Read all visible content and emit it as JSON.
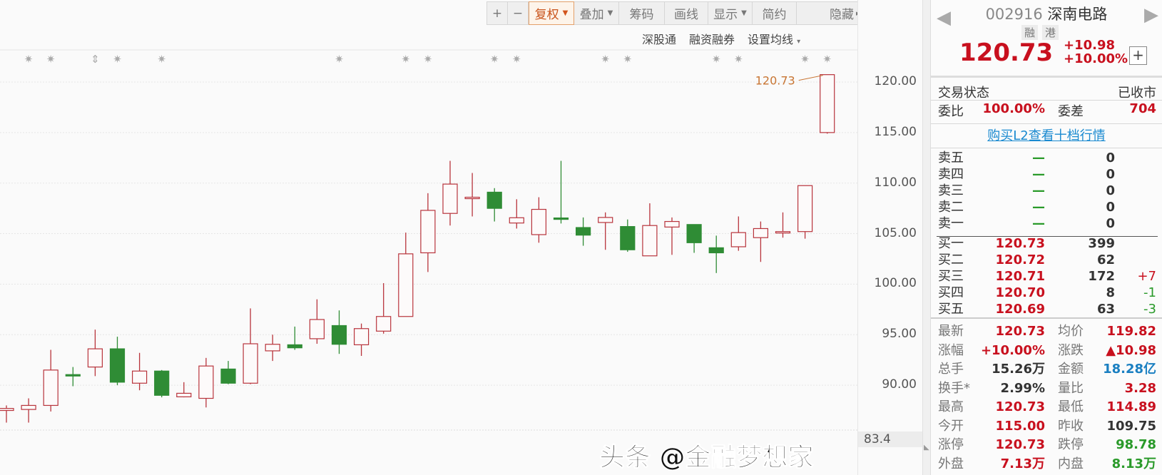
{
  "toolbar": {
    "zoom_in": "+",
    "zoom_out": "−",
    "buttons": [
      {
        "label": "复权",
        "dropdown": true,
        "active": true
      },
      {
        "label": "叠加",
        "dropdown": true,
        "active": false
      },
      {
        "label": "筹码",
        "dropdown": false,
        "active": false
      },
      {
        "label": "画线",
        "dropdown": false,
        "active": false
      },
      {
        "label": "显示",
        "dropdown": true,
        "active": false
      },
      {
        "label": "简约",
        "dropdown": false,
        "active": false
      },
      {
        "label": "隐藏",
        "dropdown": false,
        "active": false,
        "suffix": "▸▸"
      }
    ],
    "fullscreen_icon": "expand-icon"
  },
  "subbar": {
    "items": [
      "深股通",
      "融资融券",
      "设置均线"
    ],
    "caret": "▾"
  },
  "chart_data": {
    "type": "candlestick",
    "y_ticks": [
      "120.00",
      "115.00",
      "110.00",
      "105.00",
      "100.00",
      "95.00",
      "90.00"
    ],
    "y_tick_values": [
      120,
      115,
      110,
      105,
      100,
      95,
      90
    ],
    "y_low_label": "83.4",
    "ylim": [
      83.4,
      121.3
    ],
    "grid": true,
    "last_price_label": "120.73",
    "up_color": "#b8343c",
    "down_color": "#2f8c35",
    "marker_indices": [
      1,
      2,
      4,
      5,
      7,
      15,
      18,
      19,
      22,
      23,
      27,
      28,
      32,
      33,
      36,
      37
    ],
    "marker_kinds": [
      "star",
      "star",
      "updown",
      "star",
      "star",
      "star",
      "star",
      "star",
      "star",
      "star",
      "star",
      "star",
      "star",
      "star",
      "star",
      "star"
    ],
    "ohlc": [
      [
        87.5,
        88.0,
        86.3,
        87.7
      ],
      [
        87.6,
        88.7,
        86.3,
        88.0
      ],
      [
        88.0,
        93.5,
        87.4,
        91.5
      ],
      [
        91.05,
        91.8,
        89.9,
        90.95
      ],
      [
        91.8,
        95.5,
        90.9,
        93.6
      ],
      [
        93.6,
        94.8,
        90.0,
        90.3
      ],
      [
        90.2,
        93.2,
        89.5,
        91.4
      ],
      [
        91.4,
        91.5,
        88.8,
        89.0
      ],
      [
        88.85,
        90.3,
        88.8,
        89.2
      ],
      [
        88.7,
        92.7,
        87.8,
        91.9
      ],
      [
        91.6,
        92.4,
        90.1,
        90.2
      ],
      [
        90.2,
        97.6,
        90.1,
        94.1
      ],
      [
        93.4,
        95.0,
        92.4,
        94.05
      ],
      [
        94.0,
        95.8,
        93.5,
        93.7
      ],
      [
        94.6,
        98.5,
        94.1,
        96.5
      ],
      [
        95.9,
        97.4,
        93.1,
        94.05
      ],
      [
        94.0,
        96.1,
        92.9,
        95.6
      ],
      [
        95.35,
        100.1,
        95.1,
        96.8
      ],
      [
        96.8,
        105.1,
        96.8,
        103.0
      ],
      [
        103.1,
        109.0,
        101.2,
        107.3
      ],
      [
        107.0,
        112.2,
        105.8,
        109.9
      ],
      [
        108.5,
        111.0,
        106.7,
        108.6
      ],
      [
        109.1,
        109.5,
        106.2,
        107.5
      ],
      [
        106.05,
        108.4,
        105.5,
        106.57
      ],
      [
        104.9,
        108.6,
        104.1,
        107.4
      ],
      [
        106.55,
        112.2,
        106.0,
        106.45
      ],
      [
        105.6,
        106.6,
        103.8,
        104.85
      ],
      [
        106.1,
        107.1,
        103.4,
        106.6
      ],
      [
        105.7,
        106.4,
        103.2,
        103.4
      ],
      [
        102.8,
        108.0,
        102.8,
        105.8
      ],
      [
        105.65,
        106.6,
        102.9,
        106.2
      ],
      [
        105.9,
        105.9,
        103.1,
        104.1
      ],
      [
        103.6,
        104.8,
        101.1,
        103.1
      ],
      [
        103.7,
        106.7,
        103.3,
        105.1
      ],
      [
        104.6,
        106.2,
        102.2,
        105.5
      ],
      [
        105.1,
        107.1,
        104.6,
        105.2
      ],
      [
        105.2,
        109.75,
        104.5,
        109.75
      ],
      [
        115.0,
        120.73,
        114.89,
        120.73
      ]
    ]
  },
  "quote": {
    "code": "002916",
    "name": "深南电路",
    "tags": [
      "融",
      "港"
    ],
    "price": "120.73",
    "change": "+10.98",
    "change_pct": "+10.00%",
    "add_button": "+",
    "status_label": "交易状态",
    "status_value": "已收市",
    "ratio_label": "委比",
    "ratio_value": "100.00%",
    "diff_label": "委差",
    "diff_value": "704",
    "l2_link": "购买L2查看十档行情",
    "asks": [
      {
        "label": "卖五",
        "price": "—",
        "volume": "0",
        "delta": ""
      },
      {
        "label": "卖四",
        "price": "—",
        "volume": "0",
        "delta": ""
      },
      {
        "label": "卖三",
        "price": "—",
        "volume": "0",
        "delta": ""
      },
      {
        "label": "卖二",
        "price": "—",
        "volume": "0",
        "delta": ""
      },
      {
        "label": "卖一",
        "price": "—",
        "volume": "0",
        "delta": ""
      }
    ],
    "bids": [
      {
        "label": "买一",
        "price": "120.73",
        "volume": "399",
        "delta": ""
      },
      {
        "label": "买二",
        "price": "120.72",
        "volume": "62",
        "delta": ""
      },
      {
        "label": "买三",
        "price": "120.71",
        "volume": "172",
        "delta": "+7"
      },
      {
        "label": "买四",
        "price": "120.70",
        "volume": "8",
        "delta": "-1"
      },
      {
        "label": "买五",
        "price": "120.69",
        "volume": "63",
        "delta": "-3"
      }
    ],
    "stats": [
      {
        "l1": "最新",
        "v1": "120.73",
        "c1": "red",
        "l2": "均价",
        "v2": "119.82",
        "c2": "red"
      },
      {
        "l1": "涨幅",
        "v1": "+10.00%",
        "c1": "red",
        "l2": "涨跌",
        "v2": "▲10.98",
        "c2": "red"
      },
      {
        "l1": "总手",
        "v1": "15.26万",
        "c1": "dark",
        "l2": "金额",
        "v2": "18.28亿",
        "c2": "blue"
      },
      {
        "l1": "换手*",
        "v1": "2.99%",
        "c1": "dark",
        "l2": "量比",
        "v2": "3.28",
        "c2": "red"
      },
      {
        "l1": "最高",
        "v1": "120.73",
        "c1": "red",
        "l2": "最低",
        "v2": "114.89",
        "c2": "red"
      },
      {
        "l1": "今开",
        "v1": "115.00",
        "c1": "red",
        "l2": "昨收",
        "v2": "109.75",
        "c2": "dark"
      },
      {
        "l1": "涨停",
        "v1": "120.73",
        "c1": "red",
        "l2": "跌停",
        "v2": "98.78",
        "c2": "grn"
      },
      {
        "l1": "外盘",
        "v1": "7.13万",
        "c1": "red",
        "l2": "内盘",
        "v2": "8.13万",
        "c2": "grn"
      }
    ]
  },
  "watermark": "头条 @金融梦想家"
}
